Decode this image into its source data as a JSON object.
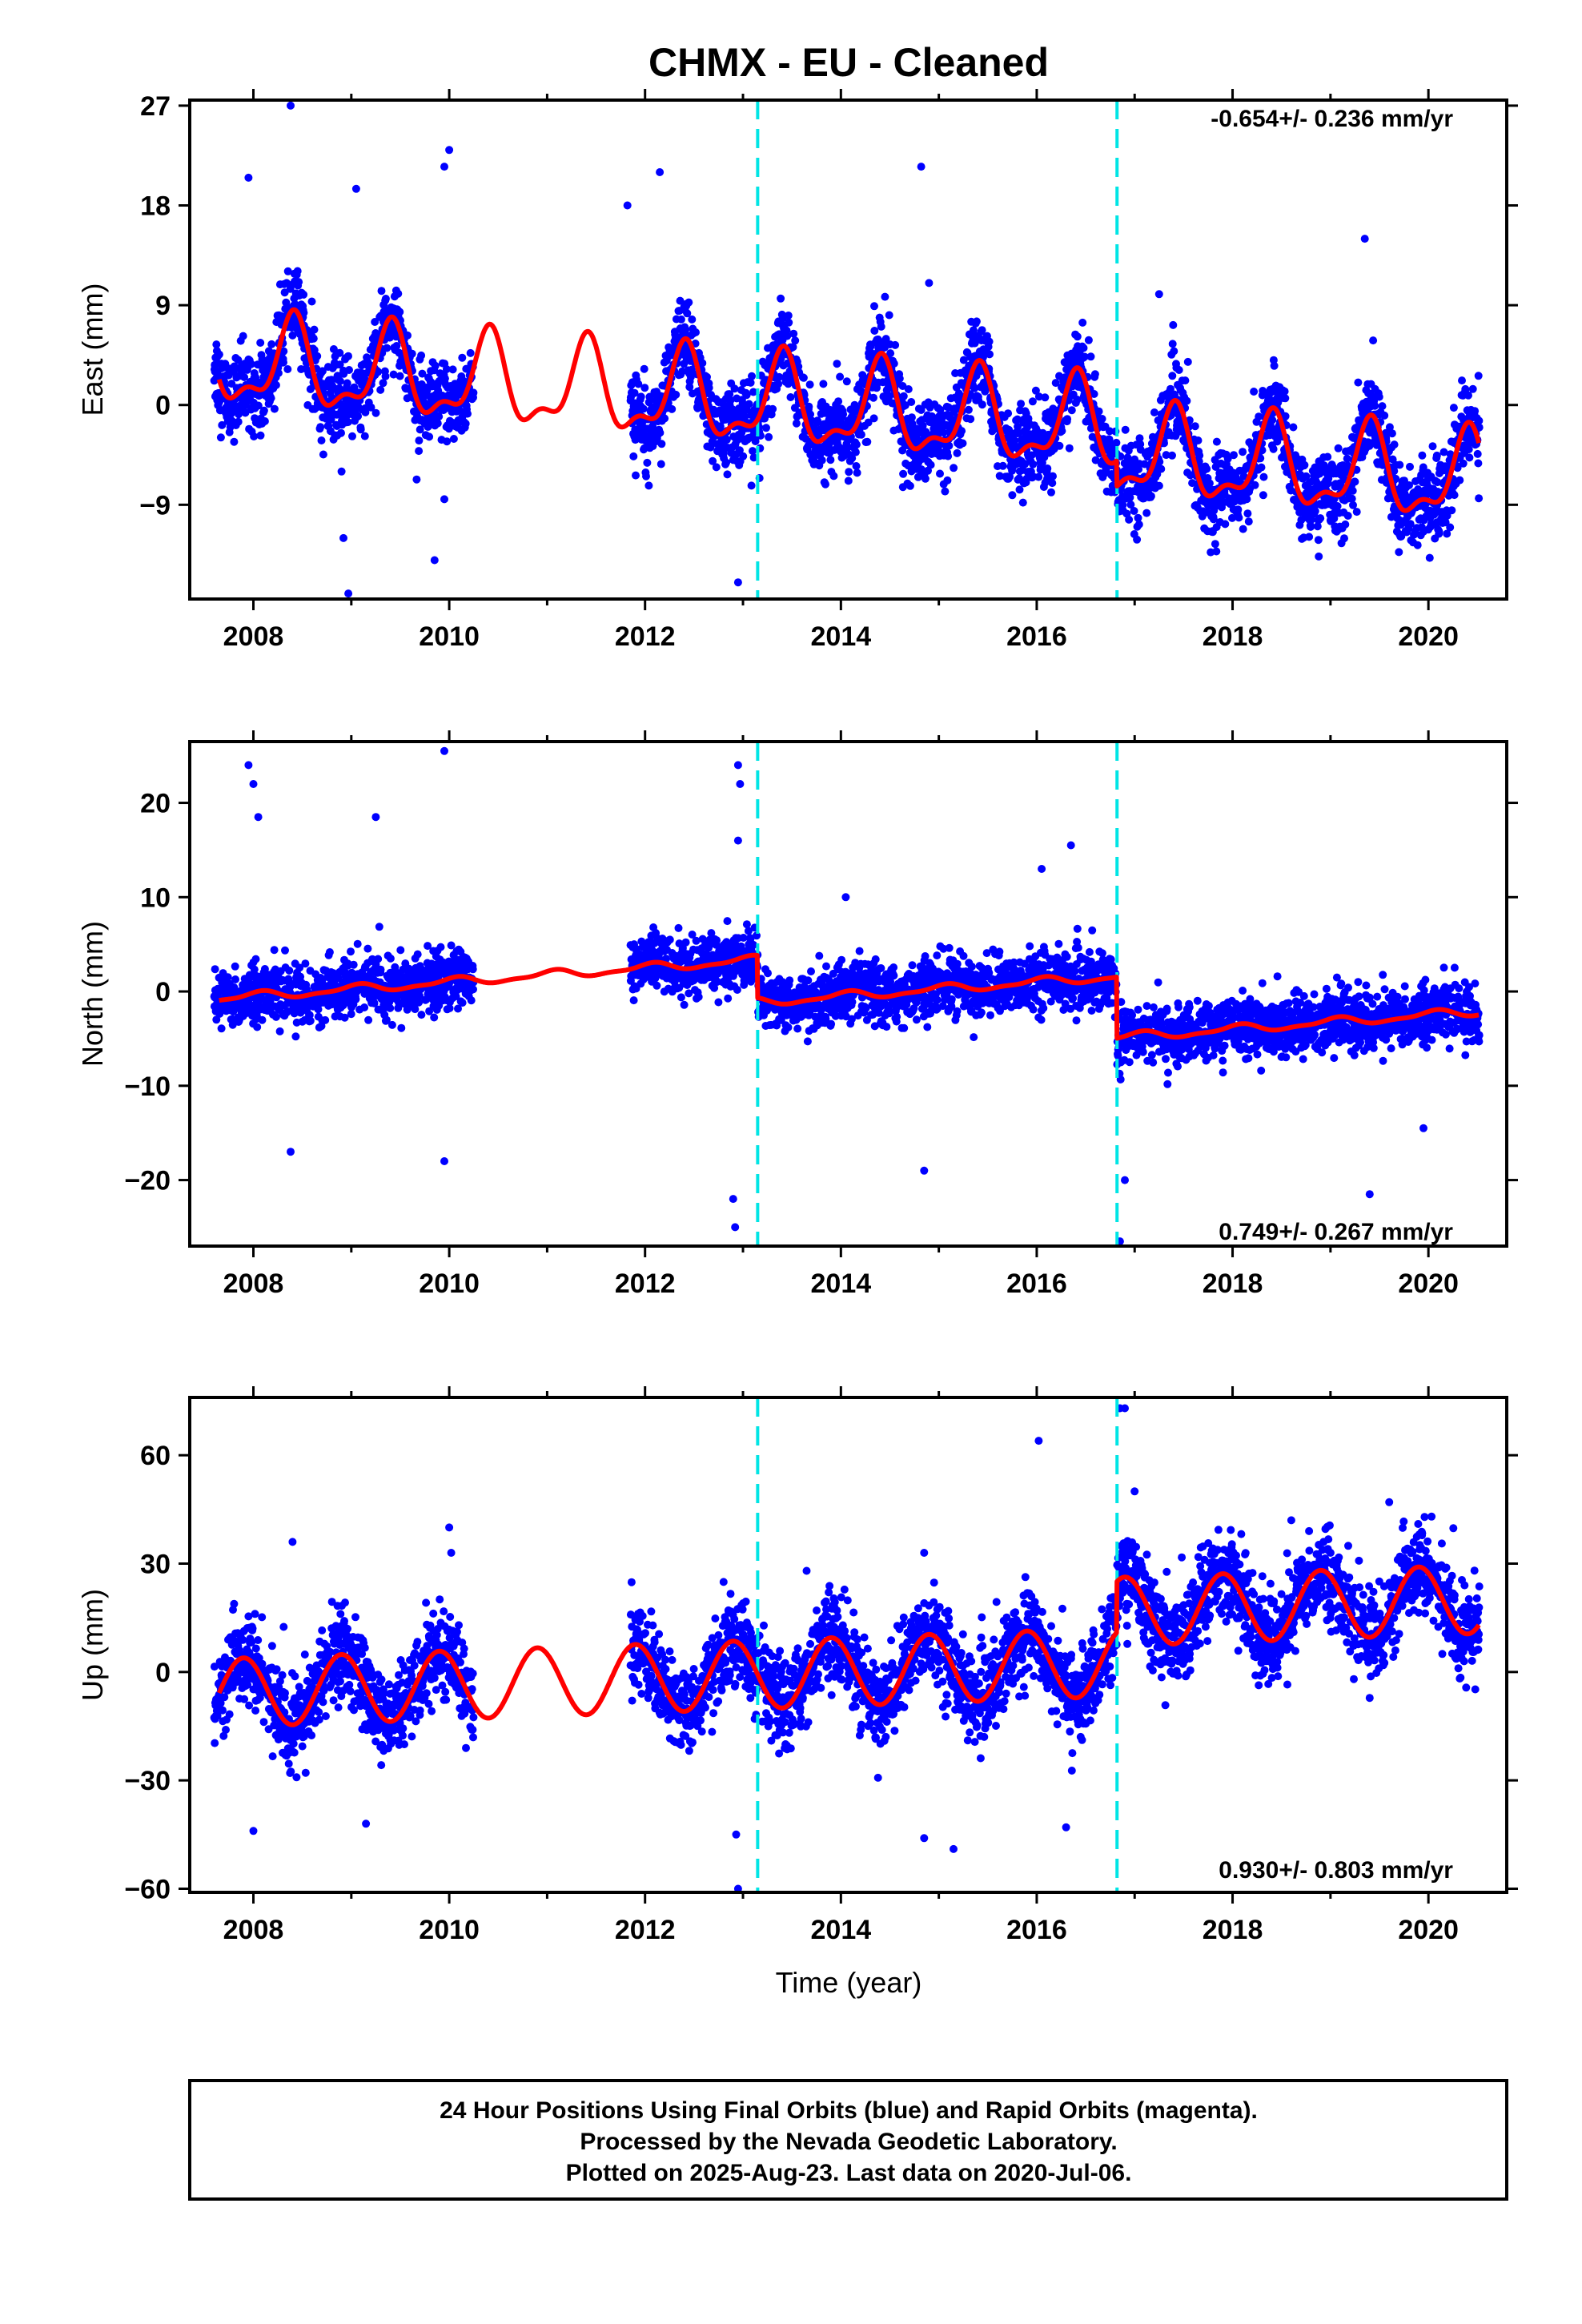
{
  "title": "CHMX  - EU - Cleaned",
  "xlabel": "Time (year)",
  "footer": {
    "line1": "24 Hour Positions Using Final Orbits (blue) and Rapid Orbits (magenta).",
    "line2": "Processed by the Nevada Geodetic Laboratory.",
    "line3": "Plotted on 2025-Aug-23. Last data on 2020-Jul-06."
  },
  "colors": {
    "final_orbits": "#0000ff",
    "model": "#ff0000",
    "event_lines": "#00e5e5",
    "frame": "#000000"
  },
  "chart_data": [
    {
      "type": "scatter",
      "component": "East",
      "ylabel": "East (mm)",
      "rate": "-0.654+/- 0.236 mm/yr",
      "xlim": [
        2007.35,
        2020.8
      ],
      "ylim": [
        -17.5,
        27.5
      ],
      "xticks": [
        2008,
        2010,
        2012,
        2014,
        2016,
        2018,
        2020
      ],
      "yticks": [
        -9,
        0,
        9,
        18,
        27
      ],
      "event_lines": [
        2013.15,
        2016.82
      ],
      "gaps": [
        [
          2010.25,
          2011.85
        ]
      ],
      "model": {
        "offset": 3.6,
        "trend": -0.654,
        "annual_amp": 3.7,
        "annual_phase": -0.15,
        "semi_amp": 1.6,
        "semi_phase": 0.4,
        "jumps": [
          [
            2013.15,
            0.0
          ],
          [
            2016.82,
            -2.3
          ]
        ],
        "epoch": 2008.0,
        "noise": 1.8
      },
      "outliers": [
        [
          2008.38,
          27.0
        ],
        [
          2007.95,
          20.5
        ],
        [
          2009.05,
          19.5
        ],
        [
          2010.0,
          23.0
        ],
        [
          2009.95,
          21.5
        ],
        [
          2012.15,
          21.0
        ],
        [
          2014.82,
          21.5
        ],
        [
          2019.35,
          15.0
        ],
        [
          2008.97,
          -17.0
        ],
        [
          2008.92,
          -12.0
        ],
        [
          2009.85,
          -14.0
        ],
        [
          2012.95,
          -16.0
        ],
        [
          2008.9,
          -6.0
        ],
        [
          2009.95,
          -8.5
        ],
        [
          2011.82,
          18.0
        ],
        [
          2017.25,
          10.0
        ],
        [
          2014.9,
          11.0
        ]
      ]
    },
    {
      "type": "scatter",
      "component": "North",
      "ylabel": "North (mm)",
      "rate": "0.749+/- 0.267 mm/yr",
      "xlim": [
        2007.35,
        2020.8
      ],
      "ylim": [
        -27,
        26.5
      ],
      "xticks": [
        2008,
        2010,
        2012,
        2014,
        2016,
        2018,
        2020
      ],
      "yticks": [
        -20,
        -10,
        0,
        10,
        20
      ],
      "event_lines": [
        2013.15,
        2016.82
      ],
      "gaps": [
        [
          2010.25,
          2011.85
        ]
      ],
      "model": {
        "offset": -0.5,
        "trend": 0.749,
        "annual_amp": 0.4,
        "annual_phase": 0.2,
        "semi_amp": 0.15,
        "semi_phase": 0.0,
        "jumps": [
          [
            2013.15,
            -4.5
          ],
          [
            2016.82,
            -6.5
          ]
        ],
        "epoch": 2008.0,
        "noise": 1.5
      },
      "outliers": [
        [
          2007.95,
          24.0
        ],
        [
          2008.0,
          22.0
        ],
        [
          2008.05,
          18.5
        ],
        [
          2009.25,
          18.5
        ],
        [
          2009.95,
          25.5
        ],
        [
          2012.95,
          24.0
        ],
        [
          2012.97,
          22.0
        ],
        [
          2012.95,
          16.0
        ],
        [
          2008.38,
          -17.0
        ],
        [
          2009.95,
          -18.0
        ],
        [
          2012.92,
          -25.0
        ],
        [
          2012.9,
          -22.0
        ],
        [
          2016.85,
          -26.5
        ],
        [
          2016.9,
          -20.0
        ],
        [
          2014.85,
          -19.0
        ],
        [
          2019.4,
          -21.5
        ],
        [
          2019.95,
          -14.5
        ],
        [
          2016.05,
          13.0
        ],
        [
          2016.35,
          15.5
        ],
        [
          2014.05,
          10.0
        ]
      ]
    },
    {
      "type": "scatter",
      "component": "Up",
      "ylabel": "Up (mm)",
      "rate": "0.930+/- 0.803 mm/yr",
      "xlim": [
        2007.35,
        2020.8
      ],
      "ylim": [
        -61,
        76
      ],
      "xticks": [
        2008,
        2010,
        2012,
        2014,
        2016,
        2018,
        2020
      ],
      "yticks": [
        -60,
        -30,
        0,
        30,
        60
      ],
      "event_lines": [
        2013.15,
        2016.82
      ],
      "gaps": [
        [
          2010.25,
          2011.85
        ]
      ],
      "model": {
        "offset": -5.5,
        "trend": 0.93,
        "annual_amp": 9.5,
        "annual_phase": 0.35,
        "semi_amp": 0.0,
        "semi_phase": 0.0,
        "jumps": [
          [
            2013.15,
            0.0
          ],
          [
            2016.82,
            14.0
          ]
        ],
        "epoch": 2008.0,
        "noise": 6.0
      },
      "outliers": [
        [
          2008.4,
          36.0
        ],
        [
          2010.0,
          40.0
        ],
        [
          2010.02,
          33.0
        ],
        [
          2016.02,
          64.0
        ],
        [
          2016.85,
          73.0
        ],
        [
          2016.9,
          73.0
        ],
        [
          2017.0,
          50.0
        ],
        [
          2014.85,
          33.0
        ],
        [
          2012.95,
          -60.0
        ],
        [
          2012.93,
          -45.0
        ],
        [
          2008.0,
          -44.0
        ],
        [
          2009.15,
          -42.0
        ],
        [
          2015.15,
          -49.0
        ],
        [
          2014.85,
          -46.0
        ],
        [
          2016.3,
          -43.0
        ],
        [
          2013.65,
          28.0
        ],
        [
          2018.6,
          42.0
        ],
        [
          2019.6,
          47.0
        ]
      ]
    }
  ]
}
